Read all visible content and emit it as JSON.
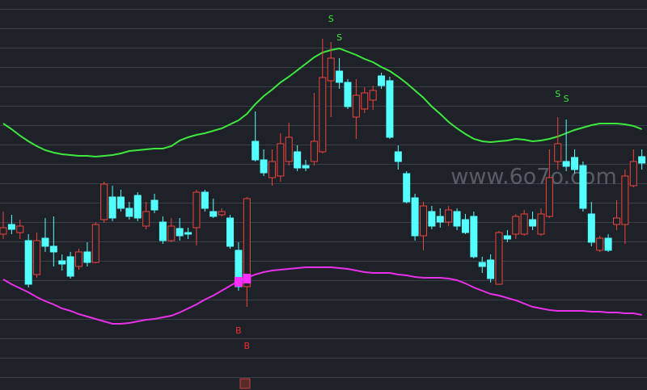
{
  "chart_data": {
    "type": "candlestick",
    "watermark": "www.6o7o.com",
    "categories": [
      null,
      null,
      null,
      null,
      null,
      null,
      null,
      null,
      null,
      null,
      null,
      null,
      null,
      null,
      null,
      null,
      null,
      null,
      null,
      null,
      null,
      null,
      null,
      null,
      null,
      null,
      null,
      null,
      null,
      null,
      null,
      null,
      null,
      null,
      null,
      null,
      null,
      null,
      null,
      null,
      null,
      null,
      null,
      null,
      null,
      null,
      null,
      null,
      null,
      null,
      null,
      null,
      null,
      null,
      null,
      null,
      null,
      null,
      null,
      null,
      null,
      null,
      null,
      null,
      null,
      null,
      null,
      null,
      null,
      null,
      null,
      null,
      null,
      null,
      null,
      null,
      null
    ],
    "open": [
      193,
      205,
      195,
      185,
      143,
      188,
      178,
      160,
      165,
      153,
      171,
      158,
      211,
      239,
      239,
      225,
      241,
      203,
      235,
      208,
      185,
      200,
      195,
      201,
      245,
      221,
      217,
      213,
      173,
      128,
      308,
      285,
      263,
      265,
      283,
      295,
      278,
      283,
      295,
      383,
      395,
      381,
      338,
      348,
      359,
      389,
      383,
      295,
      268,
      238,
      191,
      221,
      215,
      208,
      221,
      211,
      215,
      158,
      161,
      131,
      191,
      193,
      193,
      211,
      193,
      215,
      283,
      283,
      288,
      278,
      218,
      173,
      188,
      205,
      205,
      253,
      289
    ],
    "close": [
      201,
      199,
      203,
      131,
      185,
      178,
      171,
      156,
      141,
      171,
      158,
      205,
      255,
      213,
      225,
      215,
      213,
      221,
      223,
      185,
      203,
      191,
      193,
      245,
      225,
      215,
      221,
      178,
      128,
      237,
      285,
      269,
      283,
      305,
      313,
      275,
      275,
      308,
      387,
      411,
      381,
      351,
      365,
      368,
      371,
      377,
      313,
      283,
      233,
      191,
      228,
      203,
      208,
      223,
      203,
      195,
      165,
      153,
      138,
      195,
      187,
      215,
      218,
      203,
      218,
      263,
      305,
      277,
      273,
      225,
      183,
      188,
      173,
      213,
      265,
      283,
      281
    ],
    "high": [
      221,
      217,
      211,
      193,
      195,
      213,
      215,
      168,
      171,
      175,
      183,
      208,
      258,
      253,
      248,
      233,
      245,
      233,
      243,
      215,
      213,
      213,
      201,
      248,
      248,
      237,
      225,
      217,
      183,
      239,
      345,
      298,
      298,
      318,
      331,
      303,
      285,
      368,
      435,
      431,
      411,
      385,
      385,
      375,
      377,
      393,
      388,
      303,
      271,
      243,
      233,
      228,
      225,
      228,
      225,
      218,
      221,
      165,
      168,
      197,
      198,
      218,
      223,
      221,
      225,
      298,
      338,
      335,
      298,
      283,
      233,
      191,
      193,
      235,
      273,
      298,
      298
    ],
    "low": [
      187,
      193,
      187,
      127,
      139,
      171,
      153,
      148,
      138,
      149,
      153,
      157,
      207,
      209,
      221,
      211,
      209,
      199,
      219,
      181,
      183,
      185,
      187,
      179,
      221,
      213,
      215,
      175,
      123,
      103,
      283,
      265,
      253,
      258,
      278,
      271,
      271,
      278,
      293,
      338,
      373,
      348,
      311,
      343,
      347,
      373,
      311,
      273,
      231,
      185,
      173,
      199,
      201,
      203,
      198,
      193,
      163,
      145,
      133,
      131,
      183,
      187,
      191,
      198,
      191,
      213,
      273,
      271,
      268,
      221,
      178,
      171,
      171,
      198,
      181,
      251,
      273
    ],
    "up_color": "#f0443c",
    "down_color": "#54ffff",
    "bands": [
      {
        "color": "#3ee83e",
        "values": [
          330,
          323,
          315,
          308,
          302,
          297,
          294,
          292,
          291,
          290,
          290,
          289,
          290,
          291,
          293,
          296,
          297,
          298,
          299,
          299,
          302,
          309,
          313,
          316,
          318,
          321,
          324,
          329,
          334,
          342,
          354,
          364,
          372,
          381,
          388,
          396,
          404,
          412,
          418,
          421,
          423,
          419,
          415,
          410,
          406,
          400,
          395,
          388,
          380,
          371,
          362,
          351,
          342,
          332,
          324,
          317,
          311,
          308,
          307,
          308,
          309,
          311,
          310,
          308,
          309,
          311,
          314,
          318,
          322,
          325,
          328,
          330,
          330,
          330,
          329,
          327,
          323
        ]
      },
      {
        "color": "#e830e8",
        "values": [
          137,
          131,
          126,
          121,
          115,
          110,
          106,
          101,
          98,
          94,
          91,
          88,
          85,
          82,
          82,
          83,
          85,
          87,
          88,
          90,
          92,
          96,
          101,
          106,
          112,
          117,
          123,
          129,
          135,
          139,
          143,
          146,
          148,
          149,
          150,
          151,
          152,
          152,
          152,
          152,
          151,
          150,
          148,
          146,
          145,
          145,
          145,
          143,
          142,
          140,
          139,
          139,
          139,
          138,
          136,
          132,
          127,
          123,
          119,
          117,
          114,
          111,
          107,
          103,
          101,
          99,
          98,
          98,
          98,
          98,
          97,
          97,
          96,
          96,
          95,
          95,
          93
        ]
      }
    ],
    "signals": [
      {
        "text": "S",
        "index": 39,
        "color": "#3ee83e"
      },
      {
        "text": "S",
        "index": 40,
        "color": "#3ee83e"
      },
      {
        "text": "S",
        "index": 66,
        "color": "#3ee83e"
      },
      {
        "text": "S",
        "index": 67,
        "color": "#3ee83e"
      },
      {
        "text": "B",
        "index": 28,
        "color": "#e83030"
      },
      {
        "text": "B",
        "index": 29,
        "color": "#e83030"
      }
    ],
    "ylim": [
      0,
      483
    ]
  }
}
